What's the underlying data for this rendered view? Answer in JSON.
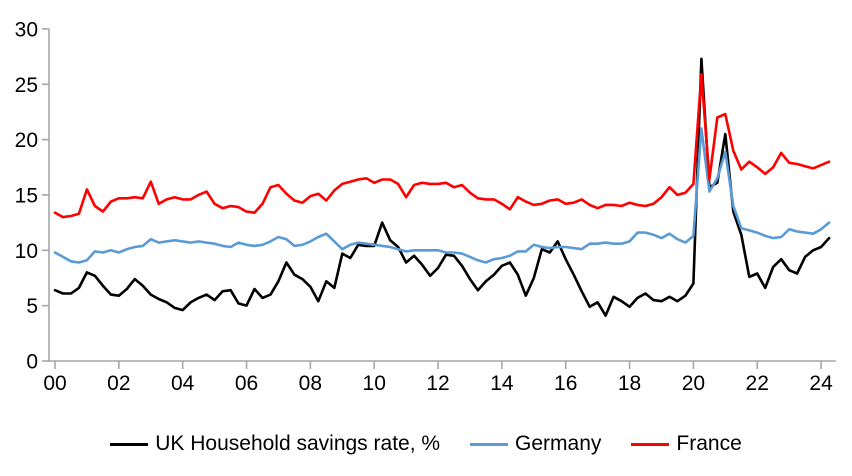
{
  "chart_data": {
    "type": "line",
    "title": "",
    "xlabel": "",
    "ylabel": "",
    "x_start": "2000Q1",
    "x_end": "2024Q2",
    "frequency": "quarterly",
    "x_tick_labels": [
      "00",
      "02",
      "04",
      "06",
      "08",
      "10",
      "12",
      "14",
      "16",
      "18",
      "20",
      "22",
      "24"
    ],
    "y_ticks": [
      0,
      5,
      10,
      15,
      20,
      25,
      30
    ],
    "ylim": [
      0,
      30
    ],
    "grid": false,
    "legend_position": "bottom",
    "axis_color": "#A6A6A6",
    "text_color": "#000000",
    "background_color": "#FFFFFF",
    "series": [
      {
        "name": "UK Household savings rate, %",
        "color": "#000000",
        "values": [
          6.4,
          6.1,
          6.1,
          6.6,
          8.0,
          7.7,
          6.8,
          6.0,
          5.9,
          6.5,
          7.4,
          6.8,
          6.0,
          5.6,
          5.3,
          4.8,
          4.6,
          5.3,
          5.7,
          6.0,
          5.5,
          6.3,
          6.4,
          5.2,
          5.0,
          6.5,
          5.7,
          6.0,
          7.2,
          8.9,
          7.8,
          7.4,
          6.7,
          5.4,
          7.2,
          6.6,
          9.7,
          9.3,
          10.5,
          10.4,
          10.4,
          12.5,
          10.9,
          10.3,
          8.9,
          9.5,
          8.7,
          7.7,
          8.4,
          9.6,
          9.5,
          8.6,
          7.4,
          6.4,
          7.2,
          7.8,
          8.6,
          8.9,
          7.8,
          5.9,
          7.5,
          10.1,
          9.8,
          10.8,
          9.2,
          7.8,
          6.3,
          4.9,
          5.3,
          4.1,
          5.8,
          5.4,
          4.9,
          5.7,
          6.1,
          5.5,
          5.4,
          5.8,
          5.4,
          5.9,
          7.0,
          27.3,
          15.7,
          16.1,
          20.5,
          13.5,
          11.4,
          7.6,
          7.9,
          6.6,
          8.5,
          9.2,
          8.2,
          7.9,
          9.4,
          10.0,
          10.3,
          11.1
        ]
      },
      {
        "name": "Germany",
        "color": "#5B9BD5",
        "values": [
          9.8,
          9.4,
          9.0,
          8.9,
          9.1,
          9.9,
          9.8,
          10.0,
          9.8,
          10.1,
          10.3,
          10.4,
          11.0,
          10.7,
          10.8,
          10.9,
          10.8,
          10.7,
          10.8,
          10.7,
          10.6,
          10.4,
          10.3,
          10.7,
          10.5,
          10.4,
          10.5,
          10.8,
          11.2,
          11.0,
          10.4,
          10.5,
          10.8,
          11.2,
          11.5,
          10.8,
          10.1,
          10.5,
          10.7,
          10.6,
          10.5,
          10.4,
          10.3,
          10.1,
          9.9,
          10.0,
          10.0,
          10.0,
          10.0,
          9.8,
          9.8,
          9.7,
          9.4,
          9.1,
          8.9,
          9.2,
          9.3,
          9.5,
          9.9,
          9.9,
          10.5,
          10.3,
          10.2,
          10.3,
          10.3,
          10.2,
          10.1,
          10.6,
          10.6,
          10.7,
          10.6,
          10.6,
          10.8,
          11.6,
          11.6,
          11.4,
          11.1,
          11.5,
          11.0,
          10.7,
          11.3,
          21.0,
          15.3,
          16.5,
          18.9,
          14.0,
          12.0,
          11.8,
          11.6,
          11.3,
          11.1,
          11.2,
          11.9,
          11.7,
          11.6,
          11.5,
          11.9,
          12.5
        ]
      },
      {
        "name": "France",
        "color": "#FF0000",
        "values": [
          13.4,
          13.0,
          13.1,
          13.3,
          15.5,
          14.0,
          13.5,
          14.4,
          14.7,
          14.7,
          14.8,
          14.7,
          16.2,
          14.2,
          14.6,
          14.8,
          14.6,
          14.6,
          15.0,
          15.3,
          14.2,
          13.8,
          14.0,
          13.9,
          13.5,
          13.4,
          14.2,
          15.7,
          15.9,
          15.1,
          14.5,
          14.3,
          14.9,
          15.1,
          14.5,
          15.4,
          16.0,
          16.2,
          16.4,
          16.5,
          16.1,
          16.4,
          16.4,
          16.0,
          14.8,
          15.9,
          16.1,
          16.0,
          16.0,
          16.1,
          15.7,
          15.9,
          15.2,
          14.7,
          14.6,
          14.6,
          14.2,
          13.7,
          14.8,
          14.4,
          14.1,
          14.2,
          14.5,
          14.6,
          14.2,
          14.3,
          14.6,
          14.1,
          13.8,
          14.1,
          14.1,
          14.0,
          14.3,
          14.1,
          14.0,
          14.2,
          14.8,
          15.7,
          15.0,
          15.2,
          16.0,
          25.9,
          16.4,
          22.0,
          22.3,
          19.0,
          17.3,
          18.0,
          17.5,
          16.9,
          17.5,
          18.8,
          17.9,
          17.8,
          17.6,
          17.4,
          17.7,
          18.0
        ]
      }
    ]
  },
  "legend": {
    "items": [
      {
        "label": "UK Household savings rate, %"
      },
      {
        "label": "Germany"
      },
      {
        "label": "France"
      }
    ]
  }
}
